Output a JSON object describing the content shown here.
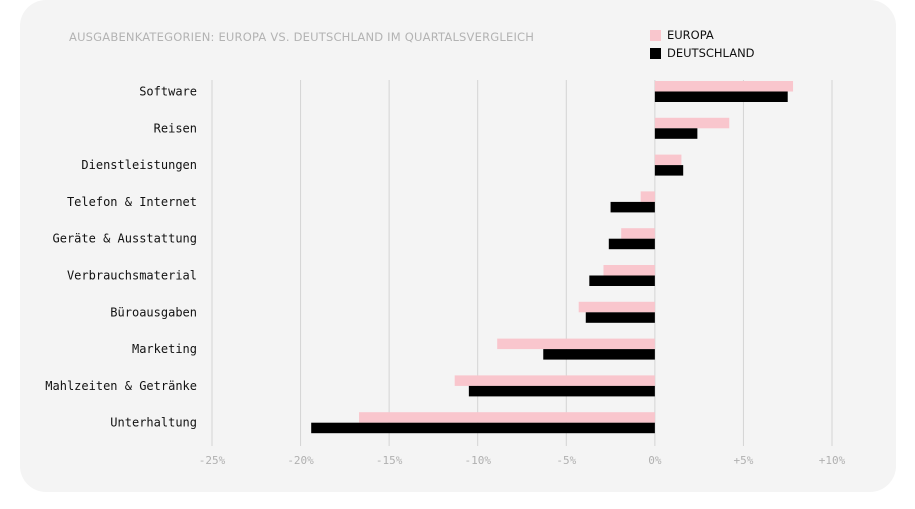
{
  "colors": {
    "europe": "#f9c6cd",
    "germany": "#000000",
    "grid": "#d4d4d4"
  },
  "chart_data": {
    "type": "bar",
    "orientation": "horizontal",
    "title": "AUSGABENKATEGORIEN: EUROPA VS. DEUTSCHLAND IM QUARTALSVERGLEICH",
    "categories": [
      "Software",
      "Reisen",
      "Dienstleistungen",
      "Telefon & Internet",
      "Geräte & Ausstattung",
      "Verbrauchsmaterial",
      "Büroausgaben",
      "Marketing",
      "Mahlzeiten & Getränke",
      "Unterhaltung"
    ],
    "series": [
      {
        "name": "EUROPA",
        "values": [
          7.8,
          4.2,
          1.5,
          -0.8,
          -1.9,
          -2.9,
          -4.3,
          -8.9,
          -11.3,
          -16.7
        ]
      },
      {
        "name": "DEUTSCHLAND",
        "values": [
          7.5,
          2.4,
          1.6,
          -2.5,
          -2.6,
          -3.7,
          -3.9,
          -6.3,
          -10.5,
          -19.4
        ]
      }
    ],
    "xlim": [
      -25,
      10
    ],
    "xticks": [
      -25,
      -20,
      -15,
      -10,
      -5,
      0,
      5,
      10
    ],
    "xtick_labels": [
      "-25%",
      "-20%",
      "-15%",
      "-10%",
      "-5%",
      "0%",
      "+5%",
      "+10%"
    ],
    "legend_position": "top-right",
    "grid": true
  }
}
